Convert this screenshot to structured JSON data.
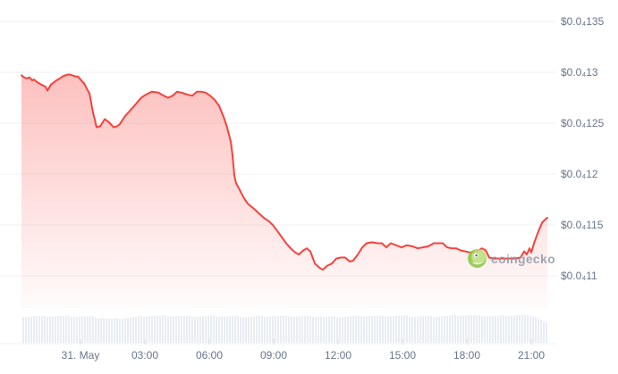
{
  "watermark": {
    "text": "coingecko",
    "logo_icon": "coingecko-gecko-logo"
  },
  "colors": {
    "background": "#ffffff",
    "line_red": "#f6423c",
    "area_fill_top": "rgba(246,66,60,0.33)",
    "area_fill_bottom": "rgba(246,66,60,0.02)",
    "gridline": "#eef0f4",
    "axis_tick": "#d8dde4",
    "axis_label": "#68758a",
    "volume_bar": "#e9edf3",
    "watermark_text": "#8f99a8",
    "logo_green_dark": "#8bc53f",
    "logo_green_light": "#bbe07e"
  },
  "chart_data": {
    "type": "area",
    "title": "",
    "xlabel": "",
    "ylabel": "",
    "legend": false,
    "grid": "horizontal-only",
    "x_axis": {
      "tick_labels": [
        "31. May",
        "03:00",
        "06:00",
        "09:00",
        "12:00",
        "15:00",
        "18:00",
        "21:00"
      ],
      "tick_hours": [
        0,
        3,
        6,
        9,
        12,
        15,
        18,
        21
      ],
      "note": "hours relative to 31. May 00:00; series starts ~21:15 on 30. May"
    },
    "y_axis": {
      "tick_labels": [
        "$0.0₄135",
        "$0.0₄13",
        "$0.0₄125",
        "$0.0₄12",
        "$0.0₄115",
        "$0.0₄11"
      ],
      "tick_values_e7": [
        135,
        130,
        125,
        120,
        115,
        110
      ],
      "unit": "price values are USD × 1e-7, e.g. 129.7 = $0.00001297",
      "side": "right"
    },
    "series": [
      {
        "name": "price",
        "color": "#f6423c",
        "t_hours": [
          -2.75,
          -2.63,
          -2.5,
          -2.38,
          -2.25,
          -2.17,
          -2.0,
          -1.92,
          -1.75,
          -1.63,
          -1.54,
          -1.46,
          -1.38,
          -1.25,
          -1.13,
          -0.96,
          -0.83,
          -0.71,
          -0.54,
          -0.38,
          -0.25,
          -0.13,
          -0.04,
          0.08,
          0.17,
          0.29,
          0.42,
          0.58,
          0.75,
          0.92,
          1.13,
          1.33,
          1.54,
          1.71,
          1.83,
          2.08,
          2.38,
          2.63,
          2.83,
          3.04,
          3.33,
          3.63,
          3.88,
          4.08,
          4.29,
          4.5,
          4.71,
          5.0,
          5.21,
          5.42,
          5.63,
          5.83,
          6.04,
          6.25,
          6.46,
          6.67,
          6.83,
          7.0,
          7.08,
          7.17,
          7.25,
          7.38,
          7.5,
          7.63,
          7.79,
          7.96,
          8.13,
          8.33,
          8.54,
          8.75,
          8.96,
          9.17,
          9.38,
          9.58,
          9.79,
          10.0,
          10.17,
          10.38,
          10.54,
          10.71,
          10.92,
          11.13,
          11.29,
          11.5,
          11.71,
          11.92,
          12.13,
          12.33,
          12.54,
          12.71,
          12.92,
          13.13,
          13.33,
          13.58,
          13.83,
          14.04,
          14.25,
          14.46,
          14.71,
          14.96,
          15.21,
          15.46,
          15.71,
          15.96,
          16.21,
          16.46,
          16.67,
          16.88,
          17.08,
          17.29,
          17.5,
          17.71,
          17.92,
          18.13,
          18.33,
          18.54,
          18.71,
          18.88,
          19.04,
          19.25,
          19.5,
          19.75,
          20.0,
          20.25,
          20.5,
          20.67,
          20.79,
          20.92,
          21.0,
          21.13,
          21.25,
          21.38,
          21.5,
          21.63,
          21.75
        ],
        "price_e7": [
          129.7,
          129.5,
          129.4,
          129.5,
          129.2,
          129.3,
          129.0,
          128.9,
          128.7,
          128.6,
          128.2,
          128.5,
          128.8,
          129.0,
          129.2,
          129.4,
          129.6,
          129.7,
          129.8,
          129.7,
          129.6,
          129.6,
          129.4,
          129.1,
          128.9,
          128.4,
          127.9,
          126.1,
          124.6,
          124.7,
          125.4,
          125.1,
          124.6,
          124.7,
          124.9,
          125.7,
          126.4,
          127.0,
          127.5,
          127.8,
          128.1,
          128.0,
          127.7,
          127.5,
          127.7,
          128.1,
          128.0,
          127.8,
          127.7,
          128.1,
          128.1,
          128.0,
          127.7,
          127.3,
          126.7,
          125.6,
          124.6,
          123.2,
          121.9,
          119.8,
          119.1,
          118.6,
          118.1,
          117.6,
          117.1,
          116.8,
          116.5,
          116.1,
          115.7,
          115.4,
          115.0,
          114.4,
          113.8,
          113.2,
          112.7,
          112.3,
          112.1,
          112.5,
          112.7,
          112.4,
          111.2,
          110.8,
          110.6,
          111.0,
          111.2,
          111.7,
          111.8,
          111.8,
          111.4,
          111.5,
          112.1,
          112.8,
          113.2,
          113.3,
          113.2,
          113.2,
          112.8,
          113.2,
          113.0,
          112.8,
          113.0,
          112.9,
          112.7,
          112.8,
          112.9,
          113.2,
          113.2,
          113.2,
          112.8,
          112.7,
          112.7,
          112.5,
          112.4,
          112.3,
          112.3,
          112.5,
          112.7,
          112.5,
          111.8,
          111.7,
          111.7,
          111.7,
          111.7,
          111.7,
          111.8,
          112.4,
          112.1,
          112.7,
          112.3,
          113.2,
          113.9,
          114.6,
          115.2,
          115.5,
          115.7
        ]
      }
    ],
    "volume": {
      "style": "thin uniform light-gray bars along bottom strip",
      "relative_profile": [
        0.94,
        0.96,
        0.95,
        0.97,
        0.95,
        0.96,
        0.94,
        0.9,
        0.86,
        0.88,
        0.93,
        0.96,
        0.98,
        0.97,
        0.96,
        0.95,
        0.96,
        0.97,
        0.95,
        0.96,
        0.94,
        0.95,
        0.96,
        0.97,
        0.96,
        0.95,
        0.96,
        0.94,
        0.93,
        0.95,
        0.96,
        0.97,
        0.96,
        0.97,
        0.98,
        0.96,
        0.95,
        0.96,
        0.97,
        0.99,
        1.0,
        0.98,
        0.96,
        0.97,
        0.99,
        1.0,
        0.96,
        0.72
      ]
    }
  }
}
